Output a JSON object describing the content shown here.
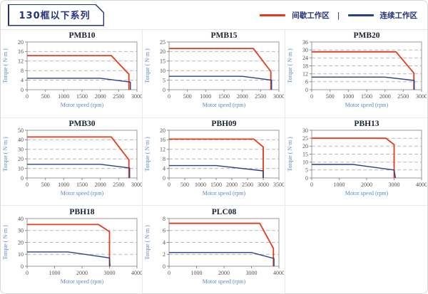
{
  "page": {
    "title": "130框以下系列"
  },
  "legend": {
    "items": [
      {
        "label": "间歇工作区",
        "color": "#e8391b"
      },
      {
        "label": "连续工作区",
        "color": "#26428b"
      }
    ],
    "separator": "|"
  },
  "colors": {
    "accent_navy": "#23337c",
    "intermittent_red": "#e8391b",
    "continuous_blue": "#26428b",
    "axis_label_blue": "#5b8ac5",
    "tick_label": "#5c5048",
    "grid_gray": "#b9b9b9"
  },
  "chart_data": [
    {
      "type": "line",
      "title": "PMB10",
      "xlabel": "Motor speed (rpm)",
      "ylabel": "Torque ( N·m )",
      "xlim": [
        0,
        3000
      ],
      "xticks": [
        0,
        500,
        1000,
        1500,
        2000,
        2500,
        3000
      ],
      "ylim": [
        0,
        20
      ],
      "yticks": [
        0,
        4,
        8,
        12,
        16,
        20
      ],
      "series": [
        {
          "name": "间歇工作区",
          "color": "#e8391b",
          "points": [
            [
              0,
              14.3
            ],
            [
              2300,
              14.3
            ],
            [
              2780,
              6.5
            ],
            [
              2780,
              0
            ]
          ]
        },
        {
          "name": "连续工作区",
          "color": "#26428b",
          "points": [
            [
              0,
              4.8
            ],
            [
              2000,
              4.8
            ],
            [
              2820,
              3.2
            ],
            [
              2820,
              0
            ]
          ]
        }
      ]
    },
    {
      "type": "line",
      "title": "PMB15",
      "xlabel": "Motor speed (rpm)",
      "ylabel": "Torque ( N·m )",
      "xlim": [
        0,
        3000
      ],
      "xticks": [
        0,
        500,
        1000,
        1500,
        2000,
        2500,
        3000
      ],
      "ylim": [
        0,
        25
      ],
      "yticks": [
        0,
        5,
        10,
        15,
        20,
        25
      ],
      "series": [
        {
          "name": "间歇工作区",
          "color": "#e8391b",
          "points": [
            [
              0,
              21.6
            ],
            [
              2300,
              21.6
            ],
            [
              2780,
              9.5
            ],
            [
              2780,
              0
            ]
          ]
        },
        {
          "name": "连续工作区",
          "color": "#26428b",
          "points": [
            [
              0,
              7
            ],
            [
              2000,
              7
            ],
            [
              2800,
              5
            ],
            [
              2800,
              0
            ]
          ]
        }
      ]
    },
    {
      "type": "line",
      "title": "PMB20",
      "xlabel": "Motor speed (rpm)",
      "ylabel": "Torque ( N·m )",
      "xlim": [
        0,
        3000
      ],
      "xticks": [
        0,
        500,
        1000,
        1500,
        2000,
        2500,
        3000
      ],
      "ylim": [
        0,
        36
      ],
      "yticks": [
        0,
        6,
        12,
        18,
        24,
        30,
        36
      ],
      "series": [
        {
          "name": "间歇工作区",
          "color": "#e8391b",
          "points": [
            [
              0,
              28.6
            ],
            [
              2300,
              28.6
            ],
            [
              2790,
              12.5
            ],
            [
              2790,
              0
            ]
          ]
        },
        {
          "name": "连续工作区",
          "color": "#26428b",
          "points": [
            [
              0,
              9.5
            ],
            [
              2000,
              9.5
            ],
            [
              2800,
              7
            ],
            [
              2800,
              0
            ]
          ]
        }
      ]
    },
    {
      "type": "line",
      "title": "PMB30",
      "xlabel": "Motor speed (rpm)",
      "ylabel": "Torque ( N·m )",
      "xlim": [
        0,
        3000
      ],
      "xticks": [
        0,
        500,
        1000,
        1500,
        2000,
        2500,
        3000
      ],
      "ylim": [
        0,
        50
      ],
      "yticks": [
        0,
        10,
        20,
        30,
        40,
        50
      ],
      "series": [
        {
          "name": "间歇工作区",
          "color": "#e8391b",
          "points": [
            [
              0,
              43
            ],
            [
              2300,
              43
            ],
            [
              2780,
              19
            ],
            [
              2780,
              0
            ]
          ]
        },
        {
          "name": "连续工作区",
          "color": "#26428b",
          "points": [
            [
              0,
              14.3
            ],
            [
              2000,
              14.3
            ],
            [
              2800,
              10.5
            ],
            [
              2800,
              0
            ]
          ]
        }
      ]
    },
    {
      "type": "line",
      "title": "PBH09",
      "xlabel": "Motor speed (rpm)",
      "ylabel": "Torque ( N·m )",
      "xlim": [
        0,
        3500
      ],
      "xticks": [
        0,
        500,
        1000,
        1500,
        2000,
        2500,
        3000,
        3500
      ],
      "ylim": [
        0,
        20
      ],
      "yticks": [
        0,
        4,
        8,
        12,
        16,
        20
      ],
      "series": [
        {
          "name": "间歇工作区",
          "color": "#e8391b",
          "points": [
            [
              0,
              16.3
            ],
            [
              2700,
              16.3
            ],
            [
              3000,
              13
            ],
            [
              3000,
              0
            ]
          ]
        },
        {
          "name": "连续工作区",
          "color": "#26428b",
          "points": [
            [
              0,
              5.2
            ],
            [
              1500,
              5.2
            ],
            [
              3000,
              3
            ],
            [
              3000,
              0
            ]
          ]
        }
      ]
    },
    {
      "type": "line",
      "title": "PBH13",
      "xlabel": "Motor speed (rpm)",
      "ylabel": "Torque ( N·m )",
      "xlim": [
        0,
        4000
      ],
      "xticks": [
        0,
        1000,
        2000,
        3000,
        4000
      ],
      "ylim": [
        0,
        30
      ],
      "yticks": [
        0,
        5,
        10,
        15,
        20,
        25,
        30
      ],
      "series": [
        {
          "name": "间歇工作区",
          "color": "#e8391b",
          "points": [
            [
              0,
              25
            ],
            [
              2700,
              25
            ],
            [
              3000,
              21
            ],
            [
              3000,
              0
            ]
          ]
        },
        {
          "name": "连续工作区",
          "color": "#26428b",
          "points": [
            [
              0,
              8.5
            ],
            [
              1500,
              8.5
            ],
            [
              3000,
              5
            ],
            [
              3050,
              0
            ]
          ]
        }
      ]
    },
    {
      "type": "line",
      "title": "PBH18",
      "xlabel": "Motor speed (rpm)",
      "ylabel": "Torque ( N·m )",
      "xlim": [
        0,
        4000
      ],
      "xticks": [
        0,
        1000,
        2000,
        3000,
        4000
      ],
      "ylim": [
        0,
        40
      ],
      "yticks": [
        0,
        10,
        20,
        30,
        40
      ],
      "series": [
        {
          "name": "间歇工作区",
          "color": "#e8391b",
          "points": [
            [
              0,
              35
            ],
            [
              2600,
              35
            ],
            [
              3000,
              29
            ],
            [
              3000,
              0
            ]
          ]
        },
        {
          "name": "连续工作区",
          "color": "#26428b",
          "points": [
            [
              0,
              12
            ],
            [
              1500,
              12
            ],
            [
              3000,
              7
            ],
            [
              3020,
              0
            ]
          ]
        }
      ]
    },
    {
      "type": "line",
      "title": "PLC08",
      "xlabel": "Motor speed (rpm)",
      "ylabel": "Torque ( N·m )",
      "xlim": [
        0,
        4000
      ],
      "xticks": [
        0,
        1000,
        2000,
        3000,
        4000
      ],
      "ylim": [
        0,
        8
      ],
      "yticks": [
        0,
        2,
        4,
        6,
        8
      ],
      "series": [
        {
          "name": "间歇工作区",
          "color": "#e8391b",
          "points": [
            [
              0,
              7.2
            ],
            [
              3300,
              7.2
            ],
            [
              3800,
              3
            ],
            [
              3800,
              0
            ]
          ]
        },
        {
          "name": "连续工作区",
          "color": "#26428b",
          "points": [
            [
              0,
              2.3
            ],
            [
              3000,
              2.3
            ],
            [
              3820,
              1.3
            ],
            [
              3820,
              0
            ]
          ]
        }
      ]
    }
  ]
}
